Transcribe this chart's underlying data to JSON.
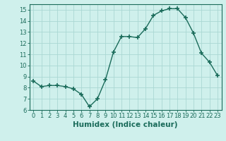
{
  "x": [
    0,
    1,
    2,
    3,
    4,
    5,
    6,
    7,
    8,
    9,
    10,
    11,
    12,
    13,
    14,
    15,
    16,
    17,
    18,
    19,
    20,
    21,
    22,
    23
  ],
  "y": [
    8.6,
    8.1,
    8.2,
    8.2,
    8.1,
    7.9,
    7.4,
    6.3,
    7.0,
    8.7,
    11.2,
    12.6,
    12.6,
    12.5,
    13.3,
    14.5,
    14.9,
    15.1,
    15.1,
    14.3,
    12.9,
    11.1,
    10.3,
    9.1
  ],
  "line_color": "#1a6b5a",
  "marker": "+",
  "marker_size": 4,
  "marker_linewidth": 1.2,
  "background_color": "#cff0ec",
  "grid_color": "#aad8d3",
  "xlabel": "Humidex (Indice chaleur)",
  "xlim": [
    -0.5,
    23.5
  ],
  "ylim": [
    6,
    15.5
  ],
  "yticks": [
    6,
    7,
    8,
    9,
    10,
    11,
    12,
    13,
    14,
    15
  ],
  "xticks": [
    0,
    1,
    2,
    3,
    4,
    5,
    6,
    7,
    8,
    9,
    10,
    11,
    12,
    13,
    14,
    15,
    16,
    17,
    18,
    19,
    20,
    21,
    22,
    23
  ],
  "tick_label_fontsize": 6,
  "xlabel_fontsize": 7.5,
  "linewidth": 1.0
}
